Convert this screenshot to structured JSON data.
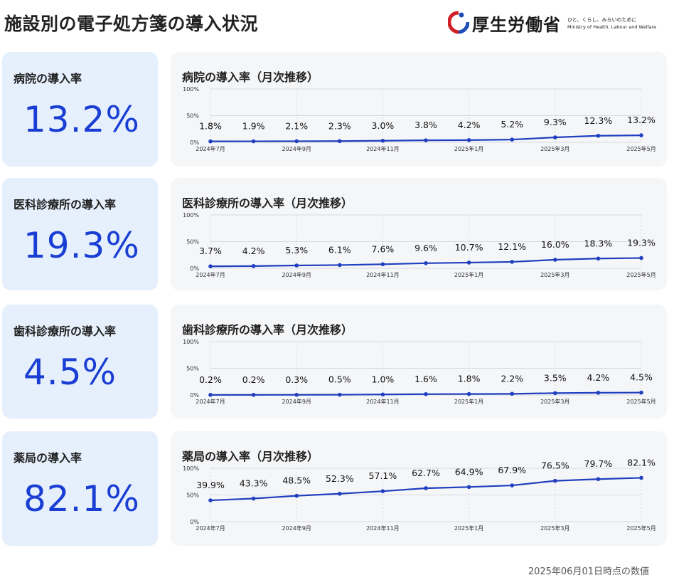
{
  "header": {
    "title": "施設別の電子処方箋の導入状況",
    "logo_name": "厚生労働省",
    "logo_sub1": "ひと、くらし、みらいのために",
    "logo_sub2": "Ministry of Health, Labour and Welfare"
  },
  "colors": {
    "accent": "#1a3ed4",
    "line": "#1f3fbf",
    "kpi_bg": "#e6f0fd",
    "panel_bg": "#f5f6f8"
  },
  "kpis": [
    {
      "label": "病院の導入率",
      "value": "13.2%"
    },
    {
      "label": "医科診療所の導入率",
      "value": "19.3%"
    },
    {
      "label": "歯科診療所の導入率",
      "value": "4.5%"
    },
    {
      "label": "薬局の導入率",
      "value": "82.1%"
    }
  ],
  "chart_data": [
    {
      "type": "line",
      "title": "病院の導入率（月次推移）",
      "x": [
        "2024年7月",
        "2024年8月",
        "2024年9月",
        "2024年10月",
        "2024年11月",
        "2024年12月",
        "2025年1月",
        "2025年2月",
        "2025年3月",
        "2025年4月",
        "2025年5月"
      ],
      "x_tick_labels": [
        "2024年7月",
        "",
        "2024年9月",
        "",
        "2024年11月",
        "",
        "2025年1月",
        "",
        "2025年3月",
        "",
        "2025年5月"
      ],
      "values": [
        1.8,
        1.9,
        2.1,
        2.3,
        3.0,
        3.8,
        4.2,
        5.2,
        9.3,
        12.3,
        13.2
      ],
      "data_labels": [
        "1.8%",
        "1.9%",
        "2.1%",
        "2.3%",
        "3.0%",
        "3.8%",
        "4.2%",
        "5.2%",
        "9.3%",
        "12.3%",
        "13.2%"
      ],
      "y_tick_labels": [
        "0%",
        "50%",
        "100%"
      ],
      "ylim": [
        0,
        100
      ],
      "grid": true
    },
    {
      "type": "line",
      "title": "医科診療所の導入率（月次推移）",
      "x": [
        "2024年7月",
        "2024年8月",
        "2024年9月",
        "2024年10月",
        "2024年11月",
        "2024年12月",
        "2025年1月",
        "2025年2月",
        "2025年3月",
        "2025年4月",
        "2025年5月"
      ],
      "x_tick_labels": [
        "2024年7月",
        "",
        "2024年9月",
        "",
        "2024年11月",
        "",
        "2025年1月",
        "",
        "2025年3月",
        "",
        "2025年5月"
      ],
      "values": [
        3.7,
        4.2,
        5.3,
        6.1,
        7.6,
        9.6,
        10.7,
        12.1,
        16.0,
        18.3,
        19.3
      ],
      "data_labels": [
        "3.7%",
        "4.2%",
        "5.3%",
        "6.1%",
        "7.6%",
        "9.6%",
        "10.7%",
        "12.1%",
        "16.0%",
        "18.3%",
        "19.3%"
      ],
      "y_tick_labels": [
        "0%",
        "50%",
        "100%"
      ],
      "ylim": [
        0,
        100
      ],
      "grid": true
    },
    {
      "type": "line",
      "title": "歯科診療所の導入率（月次推移）",
      "x": [
        "2024年7月",
        "2024年8月",
        "2024年9月",
        "2024年10月",
        "2024年11月",
        "2024年12月",
        "2025年1月",
        "2025年2月",
        "2025年3月",
        "2025年4月",
        "2025年5月"
      ],
      "x_tick_labels": [
        "2024年7月",
        "",
        "2024年9月",
        "",
        "2024年11月",
        "",
        "2025年1月",
        "",
        "2025年3月",
        "",
        "2025年5月"
      ],
      "values": [
        0.2,
        0.2,
        0.3,
        0.5,
        1.0,
        1.6,
        1.8,
        2.2,
        3.5,
        4.2,
        4.5
      ],
      "data_labels": [
        "0.2%",
        "0.2%",
        "0.3%",
        "0.5%",
        "1.0%",
        "1.6%",
        "1.8%",
        "2.2%",
        "3.5%",
        "4.2%",
        "4.5%"
      ],
      "y_tick_labels": [
        "0%",
        "50%",
        "100%"
      ],
      "ylim": [
        0,
        100
      ],
      "grid": true
    },
    {
      "type": "line",
      "title": "薬局の導入率（月次推移）",
      "x": [
        "2024年7月",
        "2024年8月",
        "2024年9月",
        "2024年10月",
        "2024年11月",
        "2024年12月",
        "2025年1月",
        "2025年2月",
        "2025年3月",
        "2025年4月",
        "2025年5月"
      ],
      "x_tick_labels": [
        "2024年7月",
        "",
        "2024年9月",
        "",
        "2024年11月",
        "",
        "2025年1月",
        "",
        "2025年3月",
        "",
        "2025年5月"
      ],
      "values": [
        39.9,
        43.3,
        48.5,
        52.3,
        57.1,
        62.7,
        64.9,
        67.9,
        76.5,
        79.7,
        82.1
      ],
      "data_labels": [
        "39.9%",
        "43.3%",
        "48.5%",
        "52.3%",
        "57.1%",
        "62.7%",
        "64.9%",
        "67.9%",
        "76.5%",
        "79.7%",
        "82.1%"
      ],
      "y_tick_labels": [
        "0%",
        "50%",
        "100%"
      ],
      "ylim": [
        0,
        100
      ],
      "grid": true
    }
  ],
  "footer": {
    "note": "2025年06月01日時点の数値"
  }
}
